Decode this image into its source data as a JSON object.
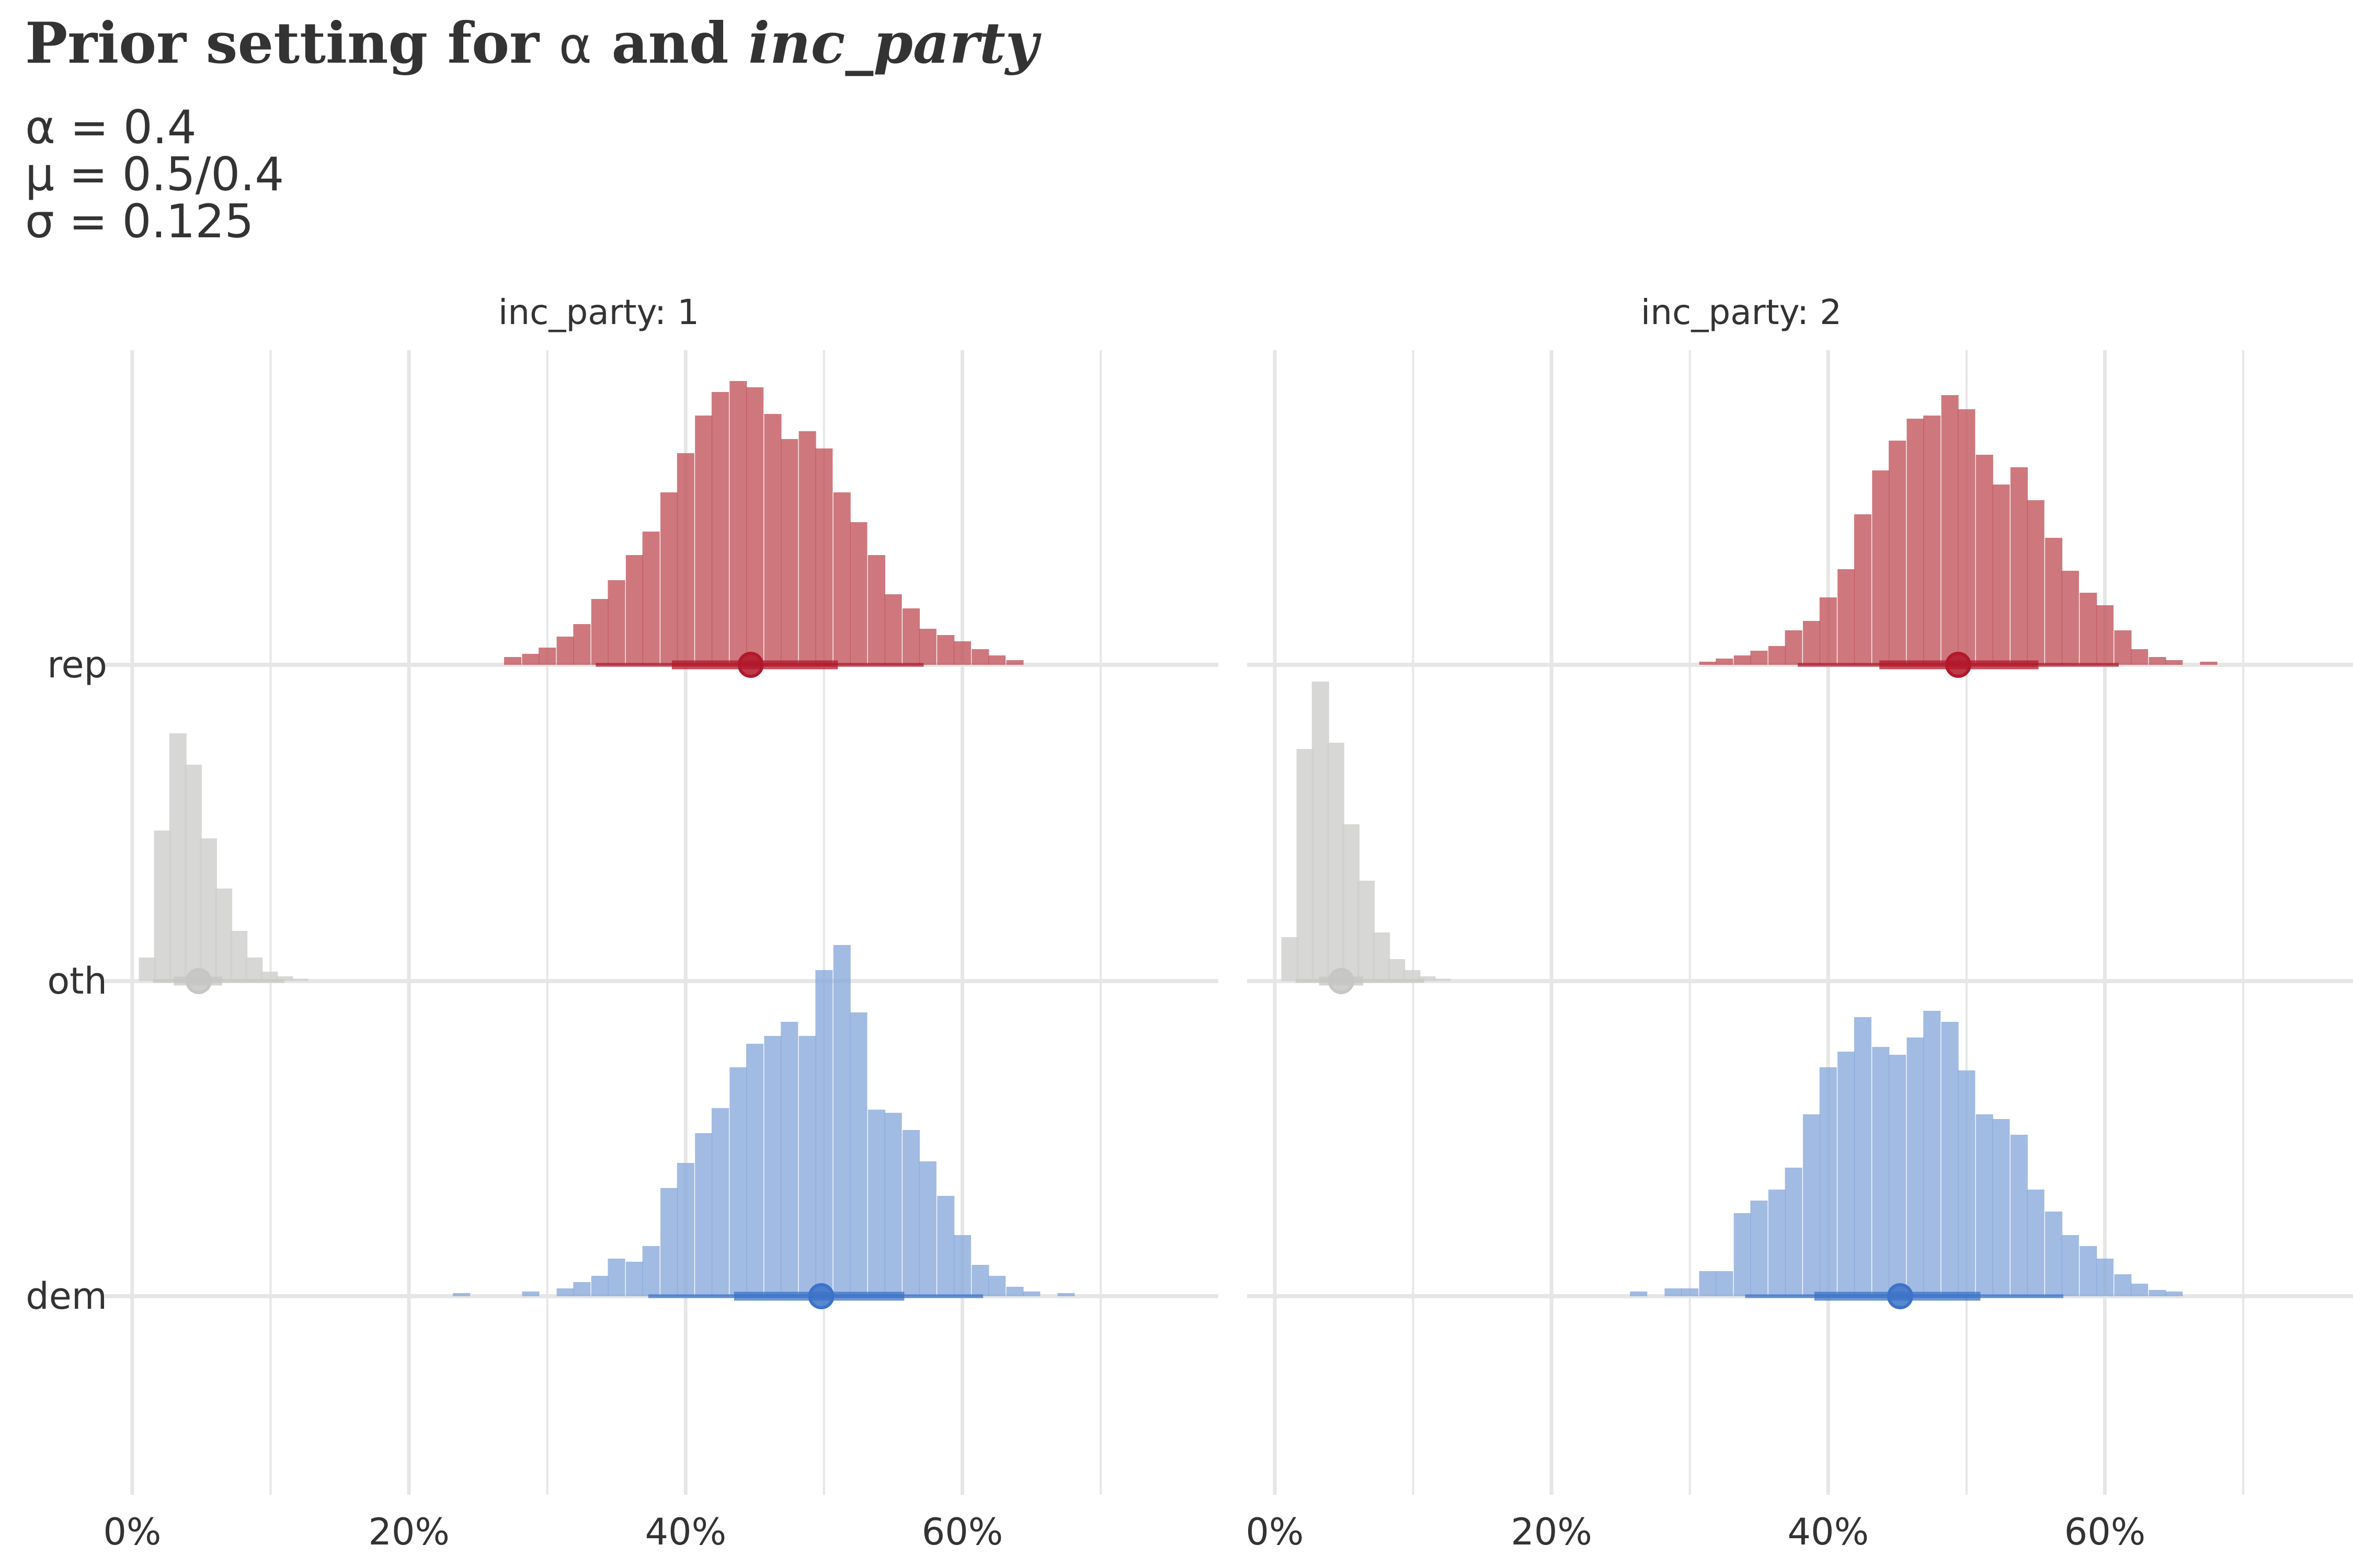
{
  "title": {
    "prefix": "Prior setting for ",
    "alpha": "α",
    "middle": " and ",
    "italic": "inc_party"
  },
  "subtitle": [
    "α = 0.4",
    "μ = 0.5/0.4",
    "σ = 0.125"
  ],
  "colors": {
    "rep": "#c0525a",
    "rep_interval": "#b2182b",
    "dem": "#86a8db",
    "dem_interval": "#3c73c8",
    "oth": "#d0d0ce",
    "oth_interval": "#c6c6c4",
    "grid": "#e6e6e6"
  },
  "chart_data": {
    "type": "histogram",
    "x_ticks": [
      "0%",
      "20%",
      "40%",
      "60%"
    ],
    "x_tick_values": [
      0,
      0.2,
      0.4,
      0.6
    ],
    "xlim": [
      -0.02,
      0.785
    ],
    "categories": [
      "rep",
      "oth",
      "dem"
    ],
    "panels": [
      {
        "strip": "inc_party: 1",
        "series": [
          {
            "category": "rep",
            "bins": [
              [
                0.275,
                0.5
              ],
              [
                0.288,
                0.7
              ],
              [
                0.3,
                1.1
              ],
              [
                0.313,
                1.8
              ],
              [
                0.325,
                2.6
              ],
              [
                0.338,
                4.2
              ],
              [
                0.35,
                5.4
              ],
              [
                0.363,
                7.0
              ],
              [
                0.375,
                8.5
              ],
              [
                0.388,
                11.0
              ],
              [
                0.4,
                13.5
              ],
              [
                0.413,
                15.9
              ],
              [
                0.425,
                17.4
              ],
              [
                0.438,
                18.1
              ],
              [
                0.45,
                17.7
              ],
              [
                0.463,
                16.0
              ],
              [
                0.475,
                14.4
              ],
              [
                0.488,
                14.9
              ],
              [
                0.5,
                13.8
              ],
              [
                0.513,
                11.0
              ],
              [
                0.525,
                9.1
              ],
              [
                0.538,
                7.0
              ],
              [
                0.55,
                4.5
              ],
              [
                0.563,
                3.6
              ],
              [
                0.575,
                2.3
              ],
              [
                0.588,
                1.9
              ],
              [
                0.6,
                1.5
              ],
              [
                0.613,
                1.0
              ],
              [
                0.625,
                0.6
              ],
              [
                0.638,
                0.3
              ]
            ],
            "point": 0.447,
            "interval_66": [
              0.39,
              0.51
            ],
            "interval_95": [
              0.335,
              0.572
            ]
          },
          {
            "category": "oth",
            "bins": [
              [
                0.011,
                1.5
              ],
              [
                0.022,
                9.6
              ],
              [
                0.033,
                15.8
              ],
              [
                0.044,
                13.8
              ],
              [
                0.055,
                9.1
              ],
              [
                0.066,
                5.9
              ],
              [
                0.077,
                3.2
              ],
              [
                0.088,
                1.5
              ],
              [
                0.099,
                0.6
              ],
              [
                0.11,
                0.3
              ],
              [
                0.121,
                0.15
              ]
            ],
            "point": 0.048,
            "interval_66": [
              0.03,
              0.065
            ],
            "interval_95": [
              0.015,
              0.11
            ]
          },
          {
            "category": "dem",
            "bins": [
              [
                0.238,
                0.2
              ],
              [
                0.288,
                0.3
              ],
              [
                0.313,
                0.5
              ],
              [
                0.325,
                0.9
              ],
              [
                0.338,
                1.3
              ],
              [
                0.35,
                2.4
              ],
              [
                0.363,
                2.2
              ],
              [
                0.375,
                3.2
              ],
              [
                0.388,
                6.9
              ],
              [
                0.4,
                8.5
              ],
              [
                0.413,
                10.4
              ],
              [
                0.425,
                12.0
              ],
              [
                0.438,
                14.6
              ],
              [
                0.45,
                16.1
              ],
              [
                0.463,
                16.6
              ],
              [
                0.475,
                17.5
              ],
              [
                0.488,
                16.6
              ],
              [
                0.5,
                20.8
              ],
              [
                0.513,
                22.4
              ],
              [
                0.525,
                18.1
              ],
              [
                0.538,
                11.9
              ],
              [
                0.55,
                11.7
              ],
              [
                0.563,
                10.6
              ],
              [
                0.575,
                8.6
              ],
              [
                0.588,
                6.4
              ],
              [
                0.6,
                3.9
              ],
              [
                0.613,
                2.0
              ],
              [
                0.625,
                1.3
              ],
              [
                0.638,
                0.6
              ],
              [
                0.65,
                0.3
              ],
              [
                0.675,
                0.2
              ]
            ],
            "point": 0.498,
            "interval_66": [
              0.435,
              0.558
            ],
            "interval_95": [
              0.373,
              0.615
            ]
          }
        ]
      },
      {
        "strip": "inc_party: 2",
        "series": [
          {
            "category": "rep",
            "bins": [
              [
                0.313,
                0.2
              ],
              [
                0.325,
                0.4
              ],
              [
                0.338,
                0.6
              ],
              [
                0.35,
                0.9
              ],
              [
                0.363,
                1.2
              ],
              [
                0.375,
                2.2
              ],
              [
                0.388,
                2.8
              ],
              [
                0.4,
                4.3
              ],
              [
                0.413,
                6.1
              ],
              [
                0.425,
                9.6
              ],
              [
                0.438,
                12.4
              ],
              [
                0.45,
                14.3
              ],
              [
                0.463,
                15.7
              ],
              [
                0.475,
                15.9
              ],
              [
                0.488,
                17.2
              ],
              [
                0.5,
                16.3
              ],
              [
                0.513,
                13.4
              ],
              [
                0.525,
                11.5
              ],
              [
                0.538,
                12.6
              ],
              [
                0.55,
                10.5
              ],
              [
                0.563,
                8.1
              ],
              [
                0.575,
                6.0
              ],
              [
                0.588,
                4.6
              ],
              [
                0.6,
                3.8
              ],
              [
                0.613,
                2.2
              ],
              [
                0.625,
                1.0
              ],
              [
                0.638,
                0.5
              ],
              [
                0.65,
                0.3
              ],
              [
                0.675,
                0.2
              ]
            ],
            "point": 0.494,
            "interval_66": [
              0.437,
              0.552
            ],
            "interval_95": [
              0.378,
              0.61
            ]
          },
          {
            "category": "oth",
            "bins": [
              [
                0.011,
                2.8
              ],
              [
                0.022,
                14.8
              ],
              [
                0.033,
                19.1
              ],
              [
                0.044,
                15.2
              ],
              [
                0.055,
                10.0
              ],
              [
                0.066,
                6.4
              ],
              [
                0.077,
                3.1
              ],
              [
                0.088,
                1.4
              ],
              [
                0.099,
                0.7
              ],
              [
                0.11,
                0.3
              ],
              [
                0.121,
                0.15
              ]
            ],
            "point": 0.048,
            "interval_66": [
              0.032,
              0.064
            ],
            "interval_95": [
              0.015,
              0.108
            ]
          },
          {
            "category": "dem",
            "bins": [
              [
                0.263,
                0.3
              ],
              [
                0.288,
                0.5
              ],
              [
                0.3,
                0.5
              ],
              [
                0.313,
                1.6
              ],
              [
                0.325,
                1.6
              ],
              [
                0.338,
                5.3
              ],
              [
                0.35,
                6.1
              ],
              [
                0.363,
                6.8
              ],
              [
                0.375,
                8.2
              ],
              [
                0.388,
                11.6
              ],
              [
                0.4,
                14.6
              ],
              [
                0.413,
                15.6
              ],
              [
                0.425,
                17.8
              ],
              [
                0.438,
                15.9
              ],
              [
                0.45,
                15.4
              ],
              [
                0.463,
                16.5
              ],
              [
                0.475,
                18.2
              ],
              [
                0.488,
                17.5
              ],
              [
                0.5,
                14.4
              ],
              [
                0.513,
                11.6
              ],
              [
                0.525,
                11.3
              ],
              [
                0.538,
                10.3
              ],
              [
                0.55,
                6.8
              ],
              [
                0.563,
                5.4
              ],
              [
                0.575,
                3.9
              ],
              [
                0.588,
                3.2
              ],
              [
                0.6,
                2.4
              ],
              [
                0.613,
                1.4
              ],
              [
                0.625,
                0.8
              ],
              [
                0.638,
                0.4
              ],
              [
                0.65,
                0.3
              ]
            ],
            "point": 0.452,
            "interval_66": [
              0.39,
              0.51
            ],
            "interval_95": [
              0.34,
              0.57
            ]
          }
        ]
      }
    ]
  }
}
